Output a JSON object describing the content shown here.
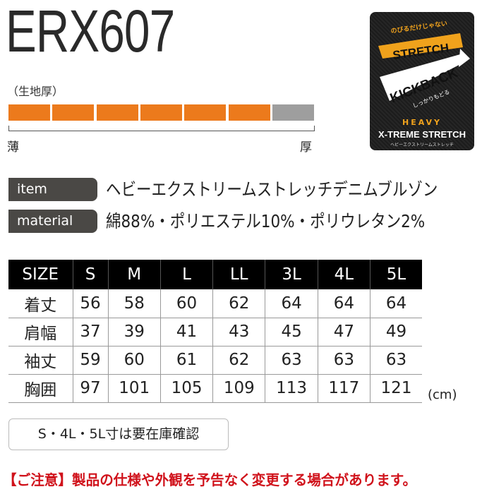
{
  "title": "ERX607",
  "thickness": {
    "label": "（生地厚）",
    "thin_label": "薄",
    "thick_label": "厚",
    "level": 6,
    "max": 7,
    "filled_color": "#ec7a1c",
    "empty_color": "#9e9e9e"
  },
  "badge": {
    "top_text": "のびるだけじゃない",
    "stretch": "STRETCH",
    "kickback": "KICKBACK",
    "kickback_sub": "しっかりもどる",
    "heavy": "HEAVY",
    "xtreme": "X-TREME STRETCH",
    "bottom_text": "ヘビーエクストリームストレッチ"
  },
  "specs": [
    {
      "label": "item",
      "value": "ヘビーエクストリームストレッチデニムブルゾン"
    },
    {
      "label": "material",
      "value": "綿88%・ポリエステル10%・ポリウレタン2%"
    }
  ],
  "size_table": {
    "headers": [
      "SIZE",
      "S",
      "M",
      "L",
      "LL",
      "3L",
      "4L",
      "5L"
    ],
    "rows": [
      [
        "着丈",
        "56",
        "58",
        "60",
        "62",
        "64",
        "64",
        "64"
      ],
      [
        "肩幅",
        "37",
        "39",
        "41",
        "43",
        "45",
        "47",
        "49"
      ],
      [
        "袖丈",
        "59",
        "60",
        "61",
        "62",
        "63",
        "63",
        "63"
      ],
      [
        "胸囲",
        "97",
        "101",
        "105",
        "109",
        "113",
        "117",
        "121"
      ]
    ],
    "unit": "(cm)"
  },
  "stock_note": "S・4L・5L寸は要在庫確認",
  "caution": "【ご注意】製品の仕様や外観を予告なく変更する場合があります。"
}
